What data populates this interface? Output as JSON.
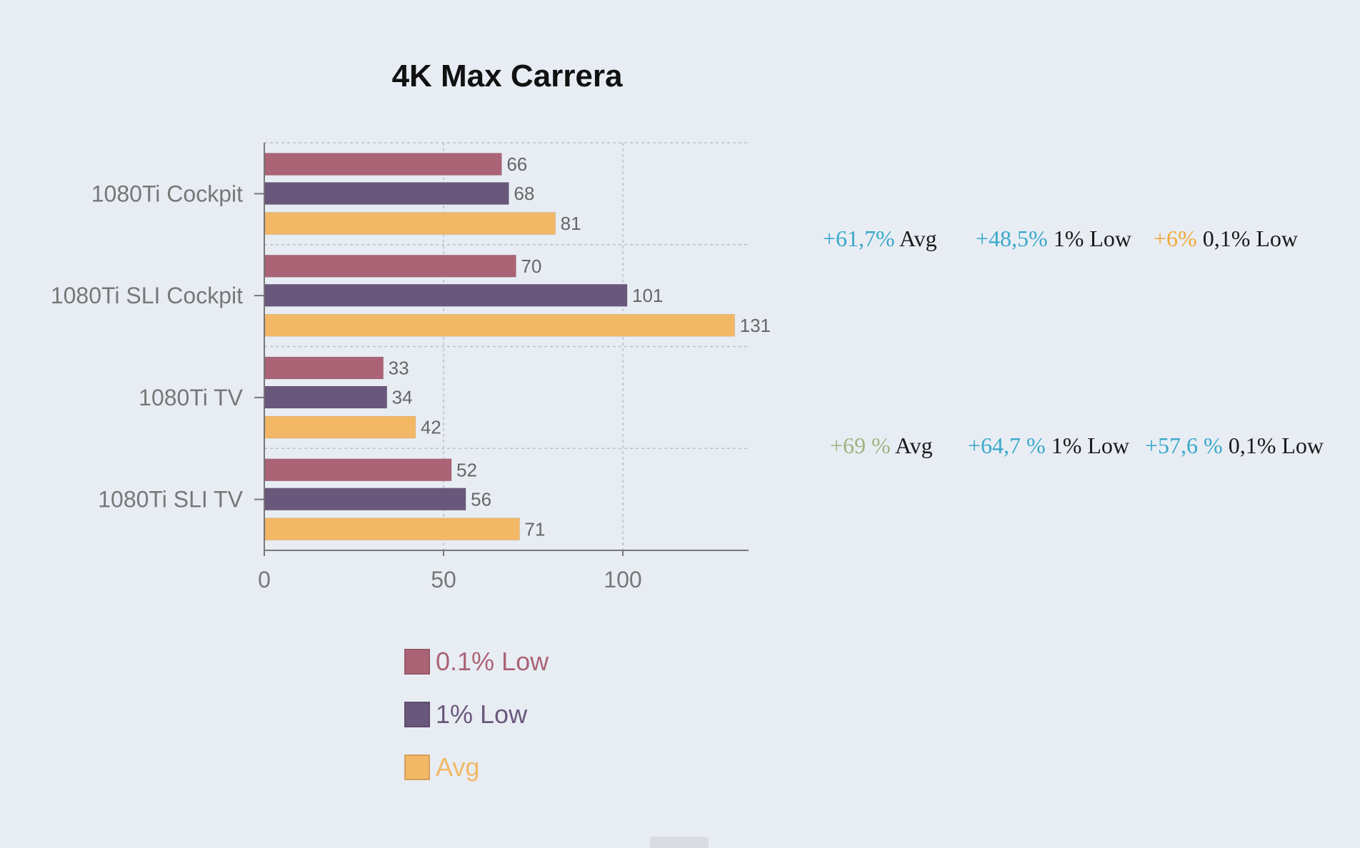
{
  "chart_data": {
    "type": "bar",
    "orientation": "horizontal",
    "title": "4K Max Carrera",
    "categories": [
      "1080Ti Cockpit",
      "1080Ti SLI Cockpit",
      "1080Ti TV",
      "1080Ti SLI TV"
    ],
    "series": [
      {
        "name": "0.1% Low",
        "color": "#ab6475",
        "values": [
          66,
          70,
          33,
          52
        ]
      },
      {
        "name": "1% Low",
        "color": "#6a587c",
        "values": [
          68,
          101,
          34,
          56
        ]
      },
      {
        "name": "Avg",
        "color": "#f2b866",
        "values": [
          81,
          131,
          42,
          71
        ]
      }
    ],
    "xticks": [
      0,
      50,
      100
    ],
    "xlim": [
      0,
      135
    ],
    "grid": true,
    "legend_position": "bottom"
  },
  "annotations": [
    {
      "items": [
        {
          "pct": "+61,7%",
          "label": "Avg",
          "color": "#3aa9c9"
        },
        {
          "pct": "+48,5%",
          "label": "1% Low",
          "color": "#3aa9c9"
        },
        {
          "pct": "+6%",
          "label": "0,1% Low",
          "color": "#f2a93b"
        }
      ]
    },
    {
      "items": [
        {
          "pct": "+69 %",
          "label": "Avg",
          "color": "#9db57f"
        },
        {
          "pct": "+64,7 %",
          "label": "1% Low",
          "color": "#3aa9c9"
        },
        {
          "pct": "+57,6 %",
          "label": "0,1% Low",
          "color": "#3aa9c9"
        }
      ]
    }
  ]
}
